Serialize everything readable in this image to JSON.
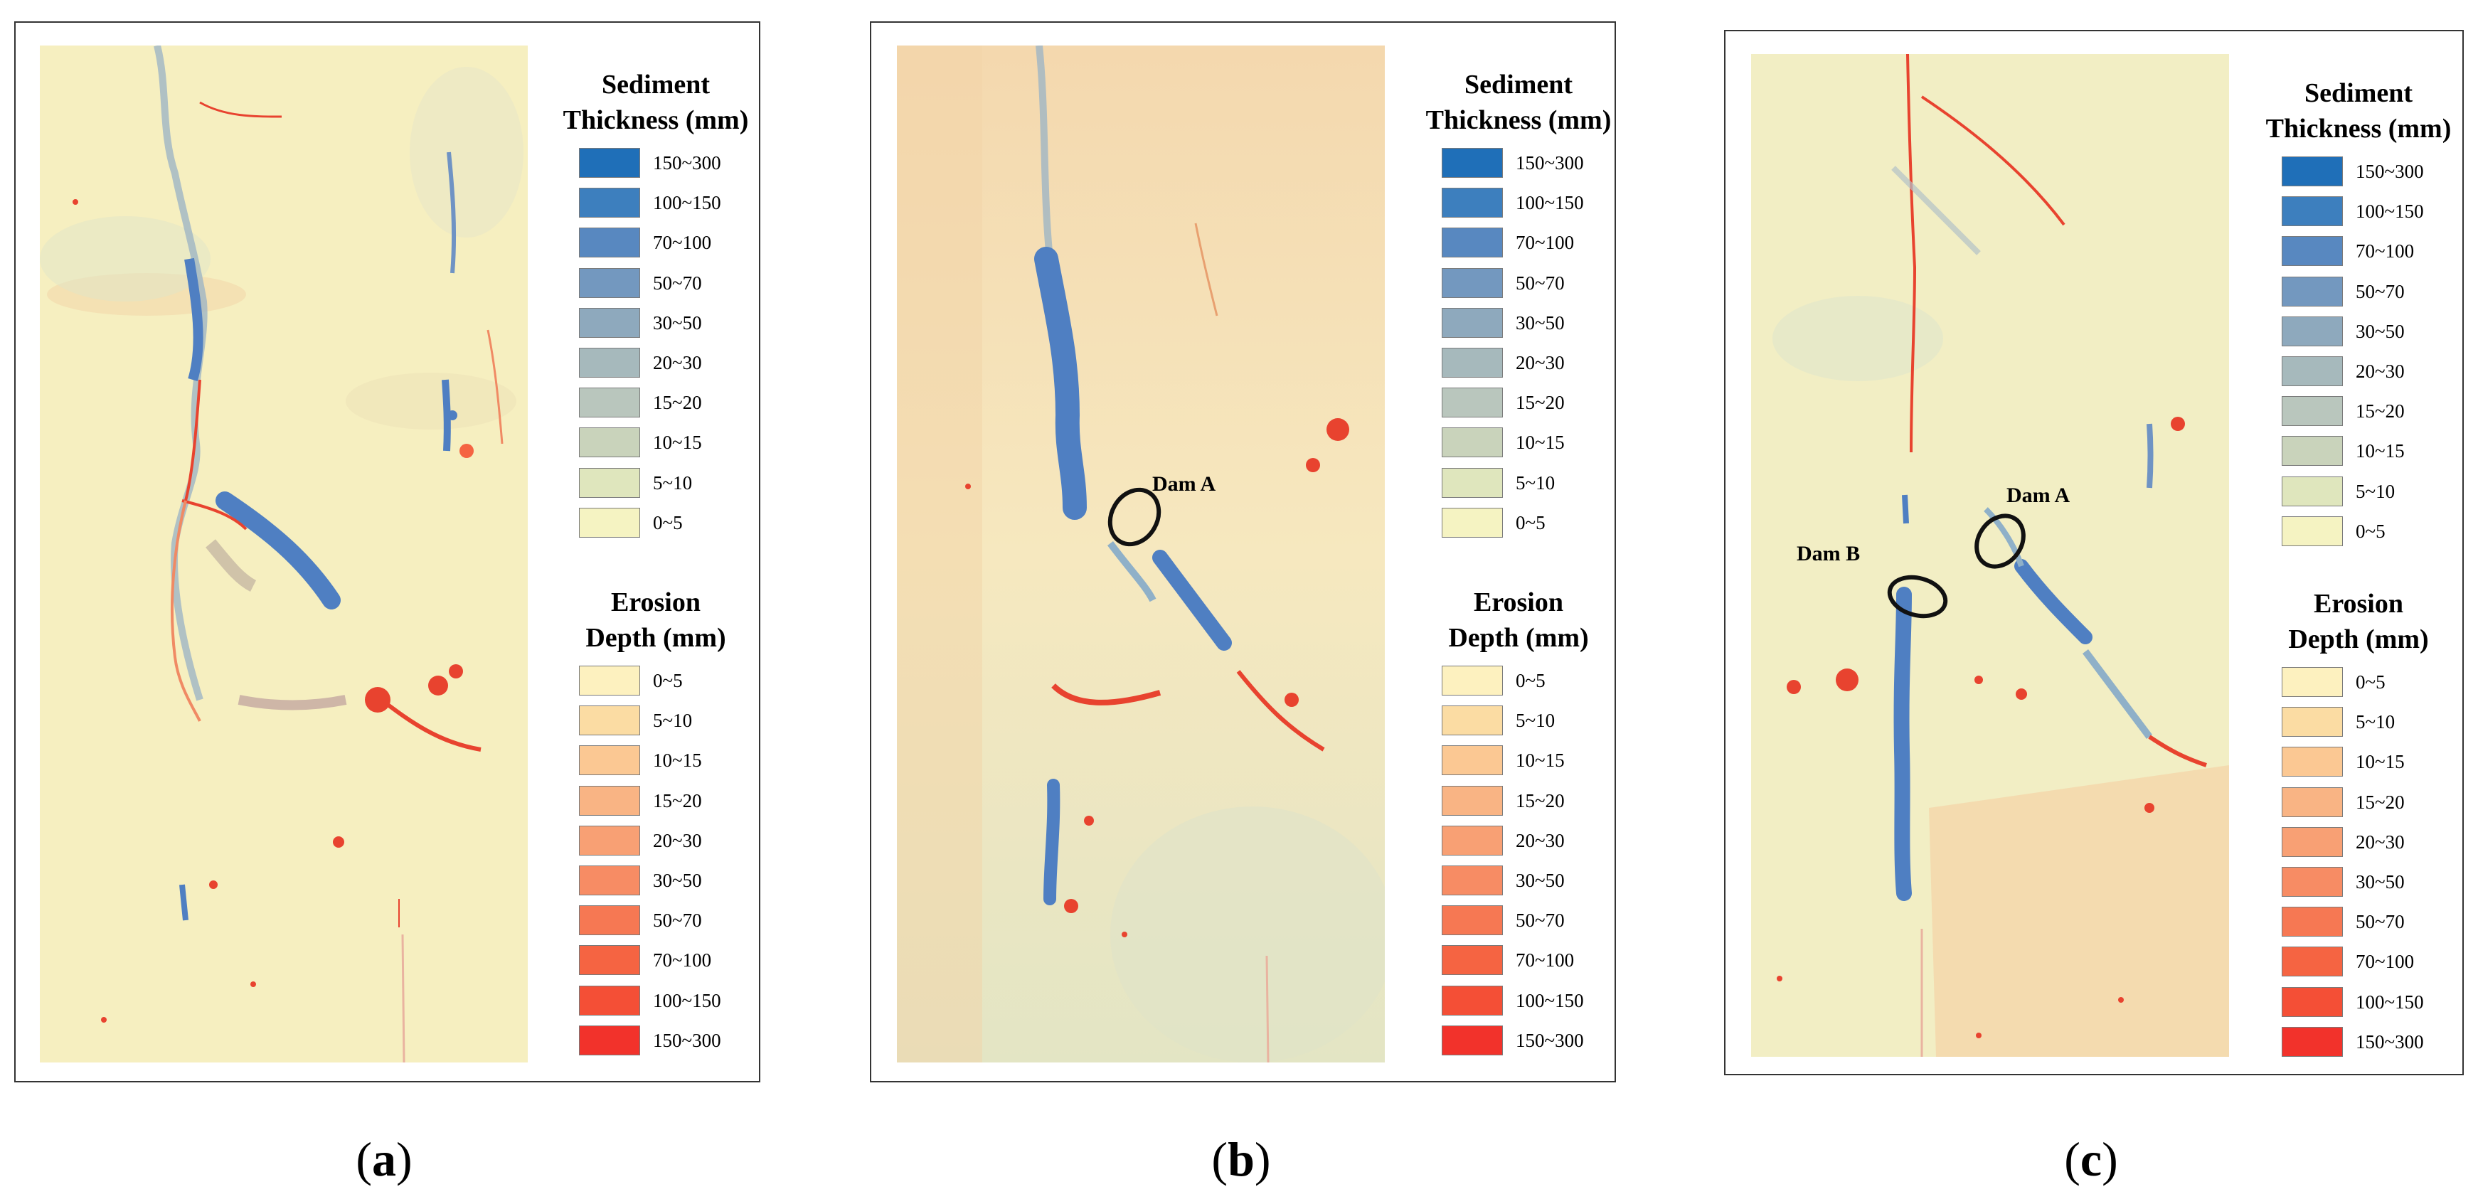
{
  "legend": {
    "sediment_title_1": "Sediment",
    "sediment_title_2": "Thickness (mm)",
    "erosion_title_1": "Erosion",
    "erosion_title_2": "Depth (mm)",
    "sediment_items": [
      {
        "label": "150~300",
        "color": "#1f6fb8"
      },
      {
        "label": "100~150",
        "color": "#3d7fbe"
      },
      {
        "label": "70~100",
        "color": "#5888c0"
      },
      {
        "label": "50~70",
        "color": "#7398bf"
      },
      {
        "label": "30~50",
        "color": "#8ea9bd"
      },
      {
        "label": "20~30",
        "color": "#a6b9bc"
      },
      {
        "label": "15~20",
        "color": "#b9c6bd"
      },
      {
        "label": "10~15",
        "color": "#c9d3bb"
      },
      {
        "label": "5~10",
        "color": "#dfe6bd"
      },
      {
        "label": "0~5",
        "color": "#f5f3c2"
      }
    ],
    "erosion_items": [
      {
        "label": "0~5",
        "color": "#fdf1bf"
      },
      {
        "label": "5~10",
        "color": "#fbdca3"
      },
      {
        "label": "10~15",
        "color": "#fbc893"
      },
      {
        "label": "15~20",
        "color": "#f9b484"
      },
      {
        "label": "20~30",
        "color": "#f8a074"
      },
      {
        "label": "30~50",
        "color": "#f78c64"
      },
      {
        "label": "50~70",
        "color": "#f67853"
      },
      {
        "label": "70~100",
        "color": "#f56442"
      },
      {
        "label": "100~150",
        "color": "#f44f36"
      },
      {
        "label": "150~300",
        "color": "#f2322b"
      }
    ]
  },
  "panels": [
    {
      "caption_open": "(",
      "caption_letter": "a",
      "caption_close": ")",
      "dams": []
    },
    {
      "caption_open": "(",
      "caption_letter": "b",
      "caption_close": ")",
      "dams": [
        "Dam A"
      ]
    },
    {
      "caption_open": "(",
      "caption_letter": "c",
      "caption_close": ")",
      "dams": [
        "Dam A",
        "Dam B"
      ]
    }
  ],
  "colors": {
    "map_base": "#f6efc0",
    "map_base_warm": "#f4dcae",
    "channel_blue": "#3f78c2",
    "erosion_red": "#e8432f",
    "panel_border": "#333333"
  }
}
